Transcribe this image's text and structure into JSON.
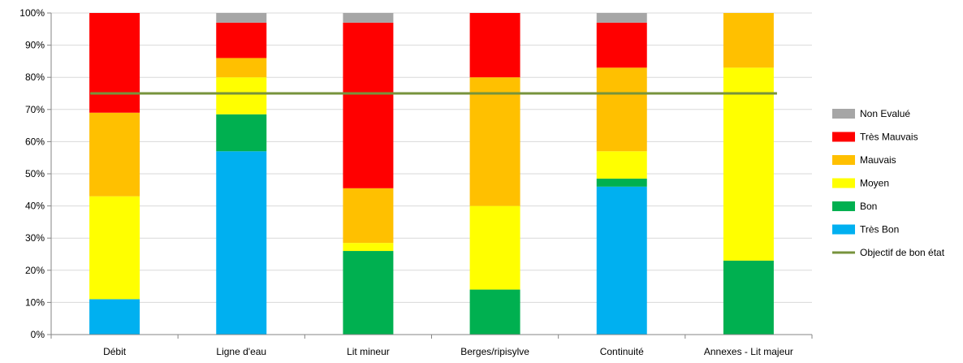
{
  "chart_data": {
    "type": "bar",
    "stacked": true,
    "title": "",
    "xlabel": "",
    "ylabel": "",
    "ylim": [
      0,
      100
    ],
    "y_unit": "%",
    "grid": true,
    "legend_position": "right",
    "categories": [
      "Débit",
      "Ligne d'eau",
      "Lit mineur",
      "Berges/ripisylve",
      "Continuité",
      "Annexes - Lit majeur"
    ],
    "series": [
      {
        "name": "Très Bon",
        "color": "#00B0F0",
        "values": [
          11,
          57,
          0,
          0,
          46,
          0
        ]
      },
      {
        "name": "Bon",
        "color": "#00B050",
        "values": [
          0,
          11.5,
          26,
          14,
          2.5,
          23
        ]
      },
      {
        "name": "Moyen",
        "color": "#FFFF00",
        "values": [
          32,
          11.5,
          2.5,
          26,
          8.5,
          60
        ]
      },
      {
        "name": "Mauvais",
        "color": "#FFC000",
        "values": [
          26,
          6,
          17,
          40,
          26,
          17
        ]
      },
      {
        "name": "Très Mauvais",
        "color": "#FF0000",
        "values": [
          31,
          11,
          51.5,
          20,
          14,
          0
        ]
      },
      {
        "name": "Non Evalué",
        "color": "#A6A6A6",
        "values": [
          0,
          3,
          3,
          0,
          3,
          0
        ]
      }
    ],
    "target_line": {
      "name": "Objectif de bon état",
      "color": "#77933C",
      "value": 75
    },
    "y_ticks": [
      "0%",
      "10%",
      "20%",
      "30%",
      "40%",
      "50%",
      "60%",
      "70%",
      "80%",
      "90%",
      "100%"
    ]
  }
}
